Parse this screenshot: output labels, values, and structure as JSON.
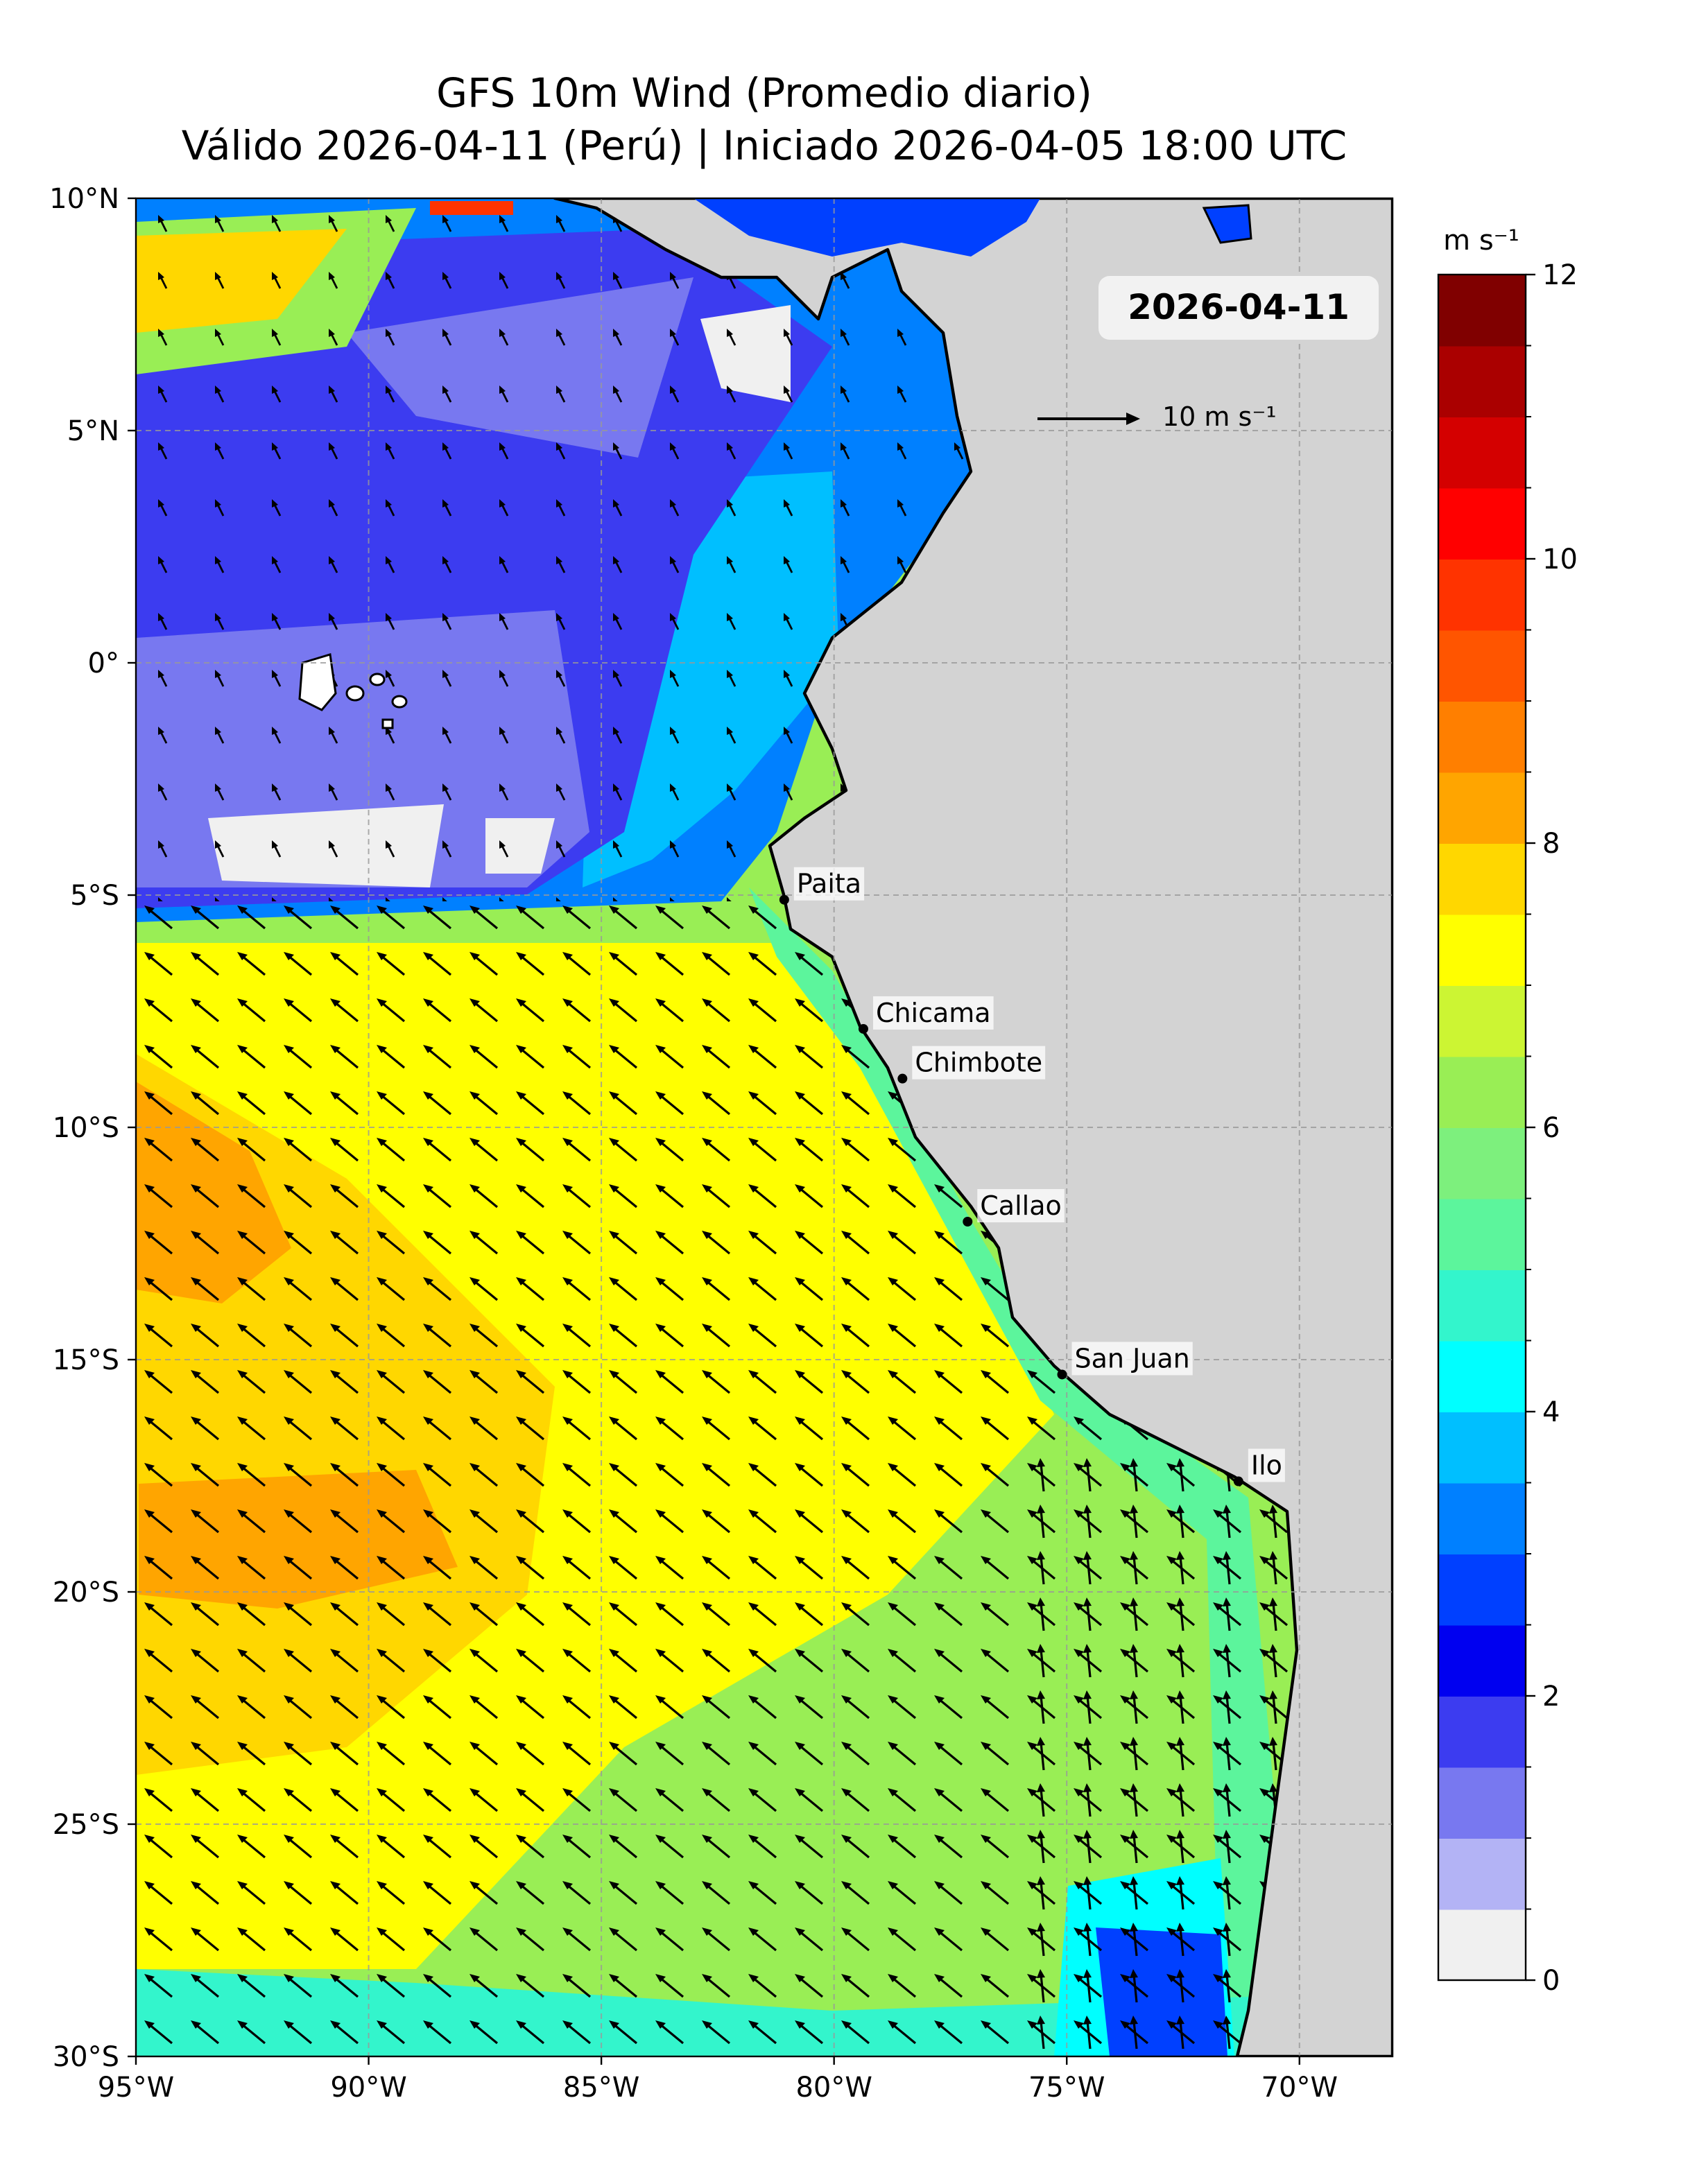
{
  "chart_data": {
    "type": "wind-map",
    "title": "GFS 10m Wind (Promedio diario)",
    "subtitle": "Válido 2026-04-11 (Perú) | Iniciado 2026-04-05 18:00 UTC",
    "date_label": "2026-04-11",
    "xlim": [
      -95,
      -68
    ],
    "ylim": [
      -30,
      10
    ],
    "xticks": [
      {
        "value": -95,
        "label": "95°W"
      },
      {
        "value": -90,
        "label": "90°W"
      },
      {
        "value": -85,
        "label": "85°W"
      },
      {
        "value": -80,
        "label": "80°W"
      },
      {
        "value": -75,
        "label": "75°W"
      },
      {
        "value": -70,
        "label": "70°W"
      }
    ],
    "yticks": [
      {
        "value": -30,
        "label": "30°S"
      },
      {
        "value": -25,
        "label": "25°S"
      },
      {
        "value": -20,
        "label": "20°S"
      },
      {
        "value": -15,
        "label": "15°S"
      },
      {
        "value": -10,
        "label": "10°S"
      },
      {
        "value": -5,
        "label": "5°S"
      },
      {
        "value": 0,
        "label": "0°"
      },
      {
        "value": 5,
        "label": "5°N"
      },
      {
        "value": 10,
        "label": "10°N"
      }
    ],
    "grid": true,
    "reference_arrow": {
      "value": 10,
      "label": "10 m s⁻¹"
    },
    "colorbar": {
      "label": "m s⁻¹",
      "lim": [
        0,
        12
      ],
      "ticks": [
        0,
        2,
        4,
        6,
        8,
        10,
        12
      ],
      "colors": [
        "#f0f0f0",
        "#b3b3f5",
        "#7878f0",
        "#3c3cf0",
        "#0000f0",
        "#0040ff",
        "#0080ff",
        "#00bfff",
        "#00ffff",
        "#33f5cc",
        "#5cf59c",
        "#7df07d",
        "#99ee55",
        "#ccf533",
        "#ffff00",
        "#ffd700",
        "#ffa500",
        "#ff7f00",
        "#ff5500",
        "#ff3300",
        "#ff0000",
        "#d40000",
        "#aa0000",
        "#800000"
      ]
    },
    "cities": [
      {
        "name": "Paita",
        "lon": -81.07,
        "lat": -5.1
      },
      {
        "name": "Chicama",
        "lon": -79.37,
        "lat": -7.88
      },
      {
        "name": "Chimbote",
        "lon": -78.53,
        "lat": -8.95
      },
      {
        "name": "Callao",
        "lon": -77.13,
        "lat": -12.03
      },
      {
        "name": "San Juan",
        "lon": -75.1,
        "lat": -15.32
      },
      {
        "name": "Ilo",
        "lon": -71.31,
        "lat": -17.62
      }
    ]
  }
}
